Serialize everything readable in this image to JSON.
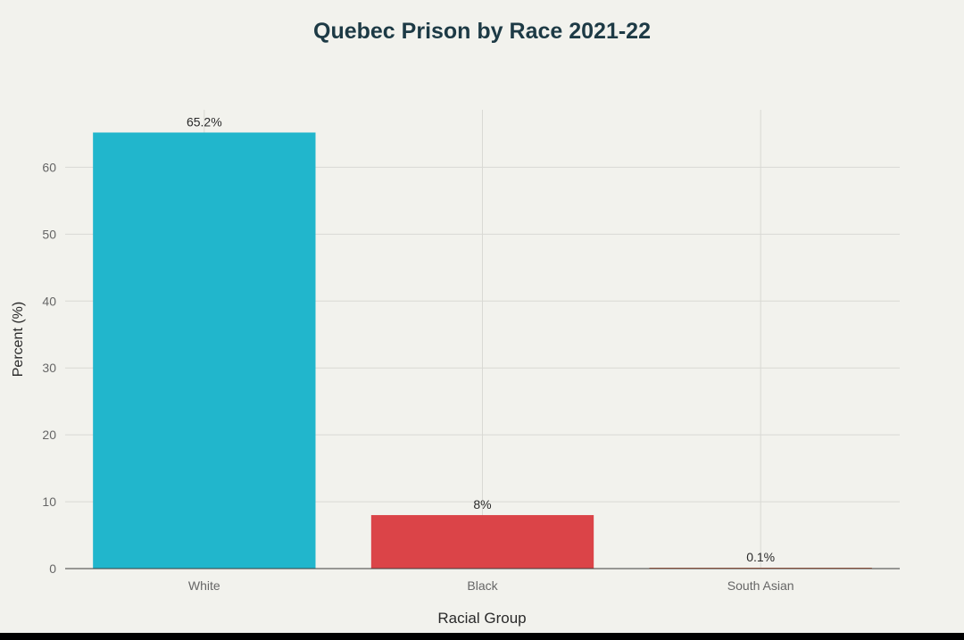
{
  "chart_data": {
    "type": "bar",
    "title": "Quebec Prison by Race 2021-22",
    "xlabel": "Racial Group",
    "ylabel": "Percent (%)",
    "categories": [
      "White",
      "Black",
      "South Asian"
    ],
    "values": [
      65.2,
      8,
      0.1
    ],
    "data_labels": [
      "65.2%",
      "8%",
      "0.1%"
    ],
    "colors": [
      "#21b6cc",
      "#db4448",
      "#d4633d"
    ],
    "yticks": [
      0,
      10,
      20,
      30,
      40,
      50,
      60
    ],
    "ylim": [
      0,
      68.6
    ],
    "grid": true,
    "legend": "none"
  },
  "colors": {
    "background": "#f2f2ed",
    "grid": "#d9d9d4",
    "axis_line": "#3c3c3c",
    "title_text": "#1d3a45",
    "label_text": "#2a2a2a",
    "tick_text": "#666666"
  }
}
